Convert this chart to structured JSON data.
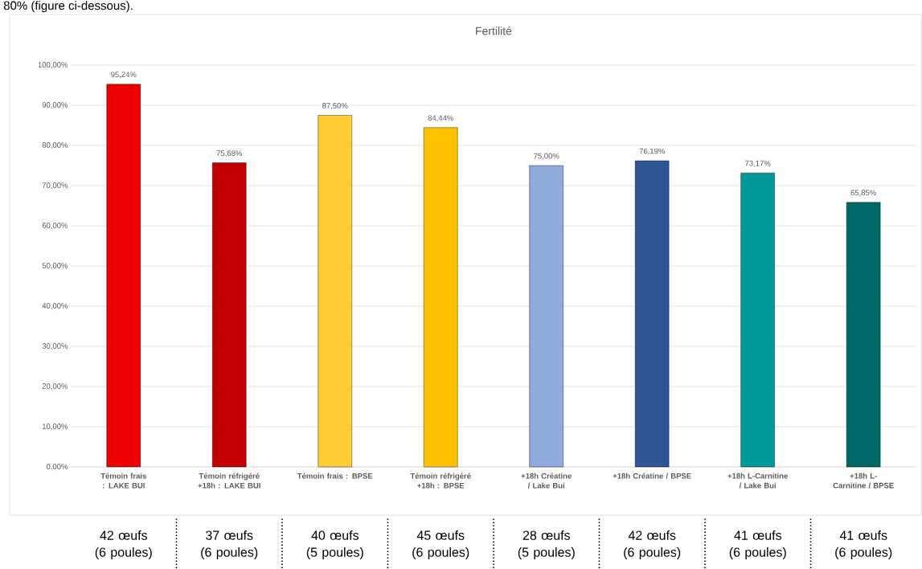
{
  "chart_data": {
    "type": "bar",
    "title": "Fertilité",
    "categories": [
      "Témoin frais : LAKE BUI",
      "Témoin réfrigéré +18h : LAKE BUI",
      "Témoin frais : BPSE",
      "Témoin réfrigéré +18h : BPSE",
      "+18h Créatine / Lake Bui",
      "+18h Créatine / BPSE",
      "+18h L-Carnitine / Lake Bui",
      "+18h L-Carnitine / BPSE"
    ],
    "values": [
      95.24,
      75.68,
      87.5,
      84.44,
      75.0,
      76.19,
      73.17,
      65.85
    ],
    "colors": [
      "#ee0000",
      "#c00000",
      "#ffcd33",
      "#ffc000",
      "#8faadc",
      "#2f5597",
      "#009999",
      "#006666"
    ],
    "value_labels": [
      "95,24%",
      "75,68%",
      "87,50%",
      "84,44%",
      "75,00%",
      "76,19%",
      "73,17%",
      "65,85%"
    ],
    "ylim": [
      0,
      100
    ],
    "yticks": [
      {
        "value": 0,
        "label": "0,00%"
      },
      {
        "value": 10,
        "label": "10,00%"
      },
      {
        "value": 20,
        "label": "20,00%"
      },
      {
        "value": 30,
        "label": "30,00%"
      },
      {
        "value": 40,
        "label": "40,00%"
      },
      {
        "value": 50,
        "label": "50,00%"
      },
      {
        "value": 60,
        "label": "60,00%"
      },
      {
        "value": 70,
        "label": "70,00%"
      },
      {
        "value": 80,
        "label": "80,00%"
      },
      {
        "value": 90,
        "label": "90,00%"
      },
      {
        "value": 100,
        "label": "100,00%"
      }
    ],
    "grid": "y",
    "annotations": [
      "80% (figure ci-dessous).",
      "42 œufs (6 poules)",
      "37 œufs (6 poules)",
      "40 œufs (5 poules)",
      "45 œufs (6 poules)",
      "28 œufs (5 poules)",
      "42 œufs (6 poules)",
      "41 œufs (6 poules)",
      "41 œufs (6 poules)"
    ]
  }
}
